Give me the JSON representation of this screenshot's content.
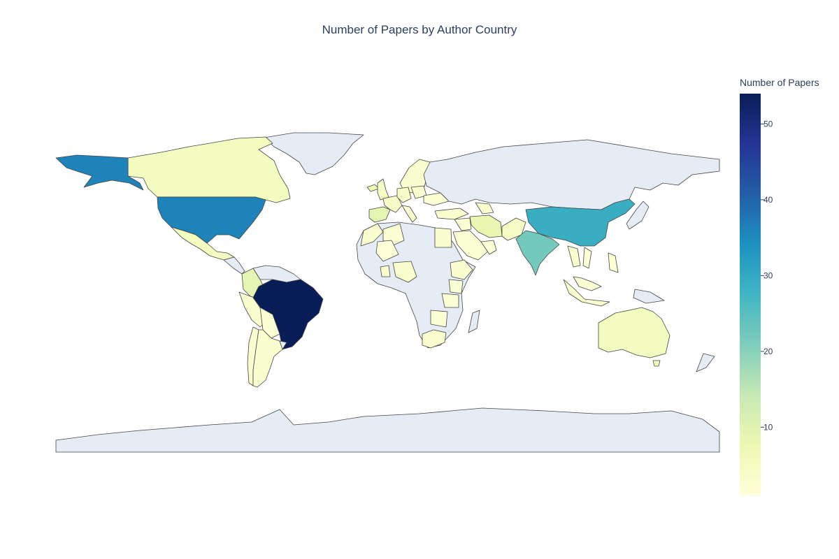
{
  "chart_data": {
    "type": "choropleth",
    "title": "Number of Papers by Author Country",
    "colorbar": {
      "title": "Number of Papers",
      "range": [
        1,
        54
      ],
      "ticks": [
        10,
        20,
        30,
        40,
        50
      ],
      "colorscale": [
        "#ffffd9",
        "#edf8b1",
        "#c7e9b4",
        "#7fcdbb",
        "#41b6c4",
        "#1d91c0",
        "#225ea8",
        "#253494",
        "#081d58"
      ]
    },
    "no_data_color": "#e5ecf6",
    "countries": [
      {
        "name": "Brazil",
        "value": 54
      },
      {
        "name": "United States",
        "value": 36
      },
      {
        "name": "Alaska (United States)",
        "value": 36
      },
      {
        "name": "China",
        "value": 29
      },
      {
        "name": "India",
        "value": 22
      },
      {
        "name": "Colombia",
        "value": 9
      },
      {
        "name": "Spain",
        "value": 9
      },
      {
        "name": "Iran",
        "value": 8
      },
      {
        "name": "Canada",
        "value": 5
      },
      {
        "name": "Mexico",
        "value": 5
      },
      {
        "name": "Australia",
        "value": 5
      },
      {
        "name": "Argentina",
        "value": 3
      },
      {
        "name": "Chile",
        "value": 3
      },
      {
        "name": "Peru",
        "value": 3
      },
      {
        "name": "Bolivia",
        "value": 2
      },
      {
        "name": "Saudi Arabia",
        "value": 2
      },
      {
        "name": "Egypt",
        "value": 3
      },
      {
        "name": "Nigeria",
        "value": 3
      },
      {
        "name": "Ethiopia",
        "value": 3
      },
      {
        "name": "Kenya",
        "value": 2
      },
      {
        "name": "Tanzania",
        "value": 2
      },
      {
        "name": "South Africa",
        "value": 3
      },
      {
        "name": "Pakistan",
        "value": 4
      },
      {
        "name": "Turkey",
        "value": 3
      },
      {
        "name": "Indonesia",
        "value": 3
      },
      {
        "name": "Thailand",
        "value": 3
      },
      {
        "name": "Vietnam",
        "value": 2
      },
      {
        "name": "Philippines",
        "value": 2
      },
      {
        "name": "Malaysia",
        "value": 2
      },
      {
        "name": "Niger",
        "value": 1
      },
      {
        "name": "Morocco",
        "value": 3
      },
      {
        "name": "Algeria",
        "value": 2
      },
      {
        "name": "United Kingdom",
        "value": 4
      },
      {
        "name": "France",
        "value": 4
      },
      {
        "name": "Germany",
        "value": 4
      },
      {
        "name": "Italy",
        "value": 3
      },
      {
        "name": "Scandinavia",
        "value": 3
      },
      {
        "name": "Poland",
        "value": 3
      },
      {
        "name": "Ukraine",
        "value": 2
      },
      {
        "name": "Uzbekistan",
        "value": 3
      },
      {
        "name": "Iraq",
        "value": 2
      },
      {
        "name": "Oman",
        "value": 2
      }
    ]
  }
}
